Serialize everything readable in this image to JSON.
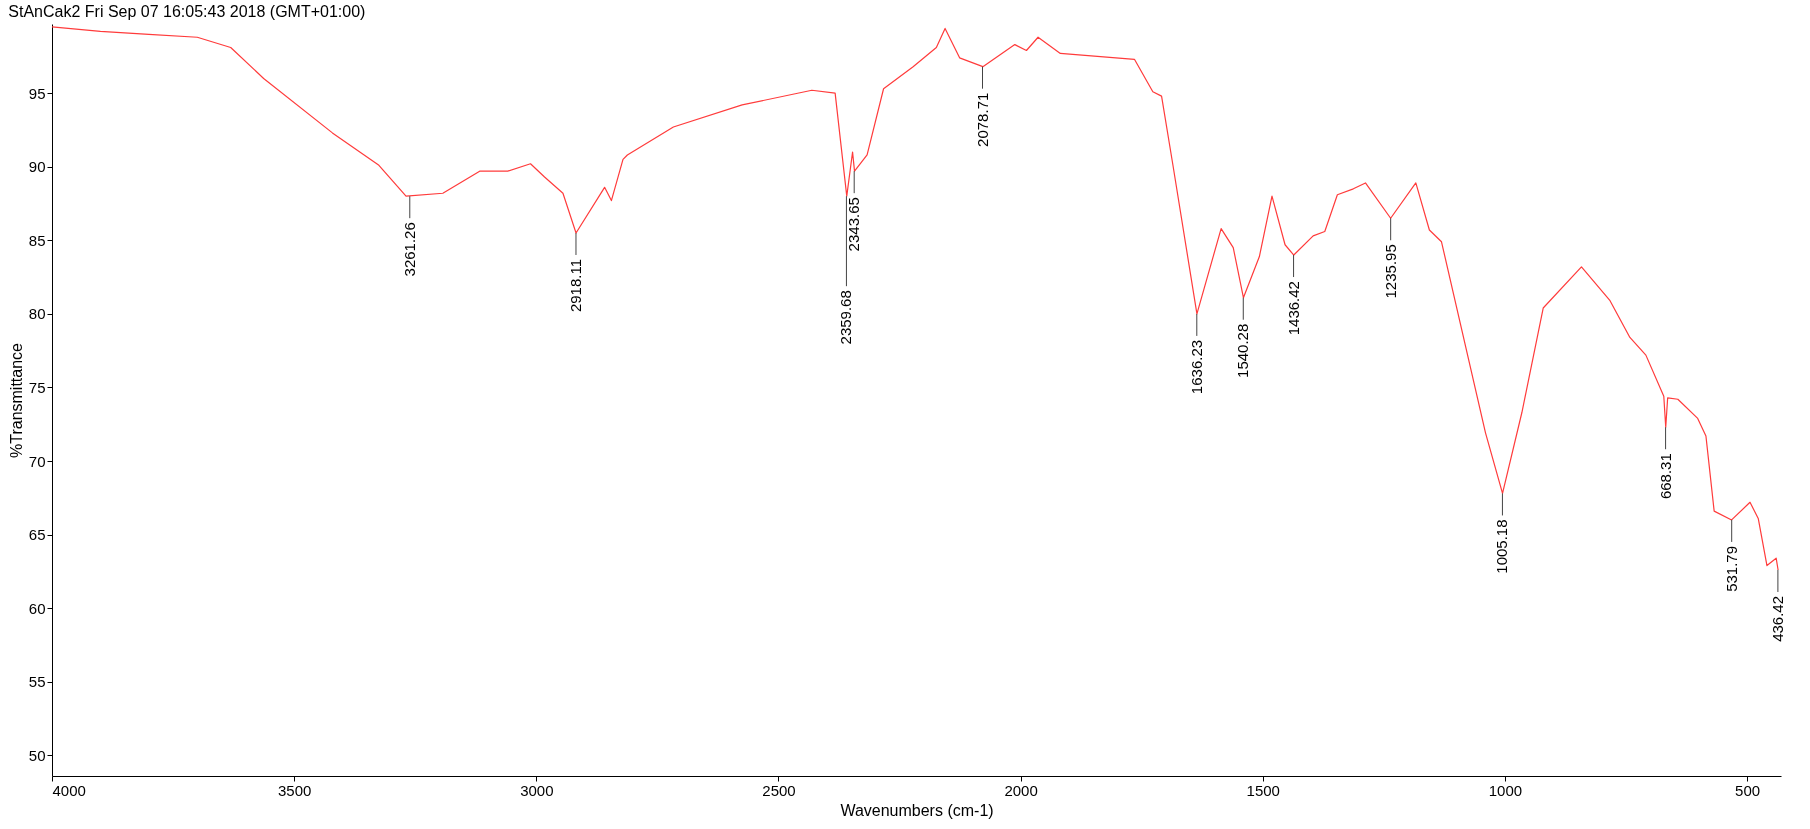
{
  "chart_data": {
    "type": "line",
    "title": "StAnCak2 Fri Sep 07 16:05:43 2018 (GMT+01:00)",
    "xlabel": "Wavenumbers (cm-1)",
    "ylabel": "%Transmittance",
    "x": [
      4000,
      3900,
      3800,
      3700,
      3631,
      3563,
      3421,
      3325,
      3269,
      3193,
      3117,
      3059,
      3012,
      2983,
      2945,
      2918,
      2859,
      2845,
      2821,
      2812,
      2717,
      2575,
      2431,
      2383,
      2359,
      2347,
      2343,
      2317,
      2283,
      2222,
      2174,
      2156,
      2126,
      2078,
      2012,
      1988,
      1964,
      1918,
      1765,
      1727,
      1709,
      1685,
      1636,
      1586,
      1561,
      1540,
      1507,
      1481,
      1454,
      1436,
      1396,
      1372,
      1346,
      1313,
      1288,
      1236,
      1184,
      1156,
      1131,
      1040,
      1005,
      965,
      921,
      842,
      783,
      742,
      709,
      672,
      668,
      664,
      643,
      602,
      585,
      568,
      532,
      494,
      477,
      459,
      440,
      436
    ],
    "series": [
      {
        "color": "#ff3b3b",
        "values": [
          99.5,
          99.2,
          99.0,
          98.8,
          98.1,
          96.0,
          92.3,
          90.1,
          88.0,
          88.2,
          89.7,
          89.7,
          90.2,
          89.3,
          88.2,
          85.5,
          88.6,
          87.7,
          90.5,
          90.8,
          92.7,
          94.2,
          95.2,
          95.0,
          88.0,
          91.0,
          89.7,
          90.8,
          95.3,
          96.8,
          98.1,
          99.4,
          97.4,
          96.8,
          98.3,
          97.9,
          98.8,
          97.7,
          97.3,
          95.1,
          94.8,
          90.0,
          80.0,
          85.8,
          84.5,
          81.1,
          83.9,
          88.0,
          84.7,
          84.0,
          85.3,
          85.6,
          88.1,
          88.5,
          88.9,
          86.5,
          88.9,
          85.7,
          84.9,
          71.9,
          67.8,
          73.3,
          80.4,
          83.2,
          80.9,
          78.4,
          77.2,
          74.4,
          72.3,
          74.3,
          74.2,
          72.9,
          71.7,
          66.6,
          66.0,
          67.2,
          66.1,
          62.9,
          63.4,
          62.6
        ]
      }
    ],
    "xlim": [
      4000,
      430
    ],
    "ylim": [
      48.6,
      99.7
    ],
    "xticks": [
      4000,
      3500,
      3000,
      2500,
      2000,
      1500,
      1000,
      500
    ],
    "yticks": [
      50,
      55,
      60,
      65,
      70,
      75,
      80,
      85,
      90,
      95
    ],
    "annotations": [
      {
        "text": "3261.26",
        "x": 3261.26,
        "y": 88.0
      },
      {
        "text": "2918.11",
        "x": 2918.11,
        "y": 85.5
      },
      {
        "text": "2359.68",
        "x": 2359.68,
        "y": 88.0
      },
      {
        "text": "2343.65",
        "x": 2343.65,
        "y": 89.7
      },
      {
        "text": "2078.71",
        "x": 2078.71,
        "y": 96.8
      },
      {
        "text": "1636.23",
        "x": 1636.23,
        "y": 80.0
      },
      {
        "text": "1540.28",
        "x": 1540.28,
        "y": 81.1
      },
      {
        "text": "1436.42",
        "x": 1436.42,
        "y": 84.0
      },
      {
        "text": "1235.95",
        "x": 1235.95,
        "y": 86.5
      },
      {
        "text": "1005.18",
        "x": 1005.18,
        "y": 67.8
      },
      {
        "text": "668.31",
        "x": 668.31,
        "y": 72.3
      },
      {
        "text": "531.79",
        "x": 531.79,
        "y": 66.0
      },
      {
        "text": "436.42",
        "x": 436.42,
        "y": 62.6
      }
    ]
  }
}
